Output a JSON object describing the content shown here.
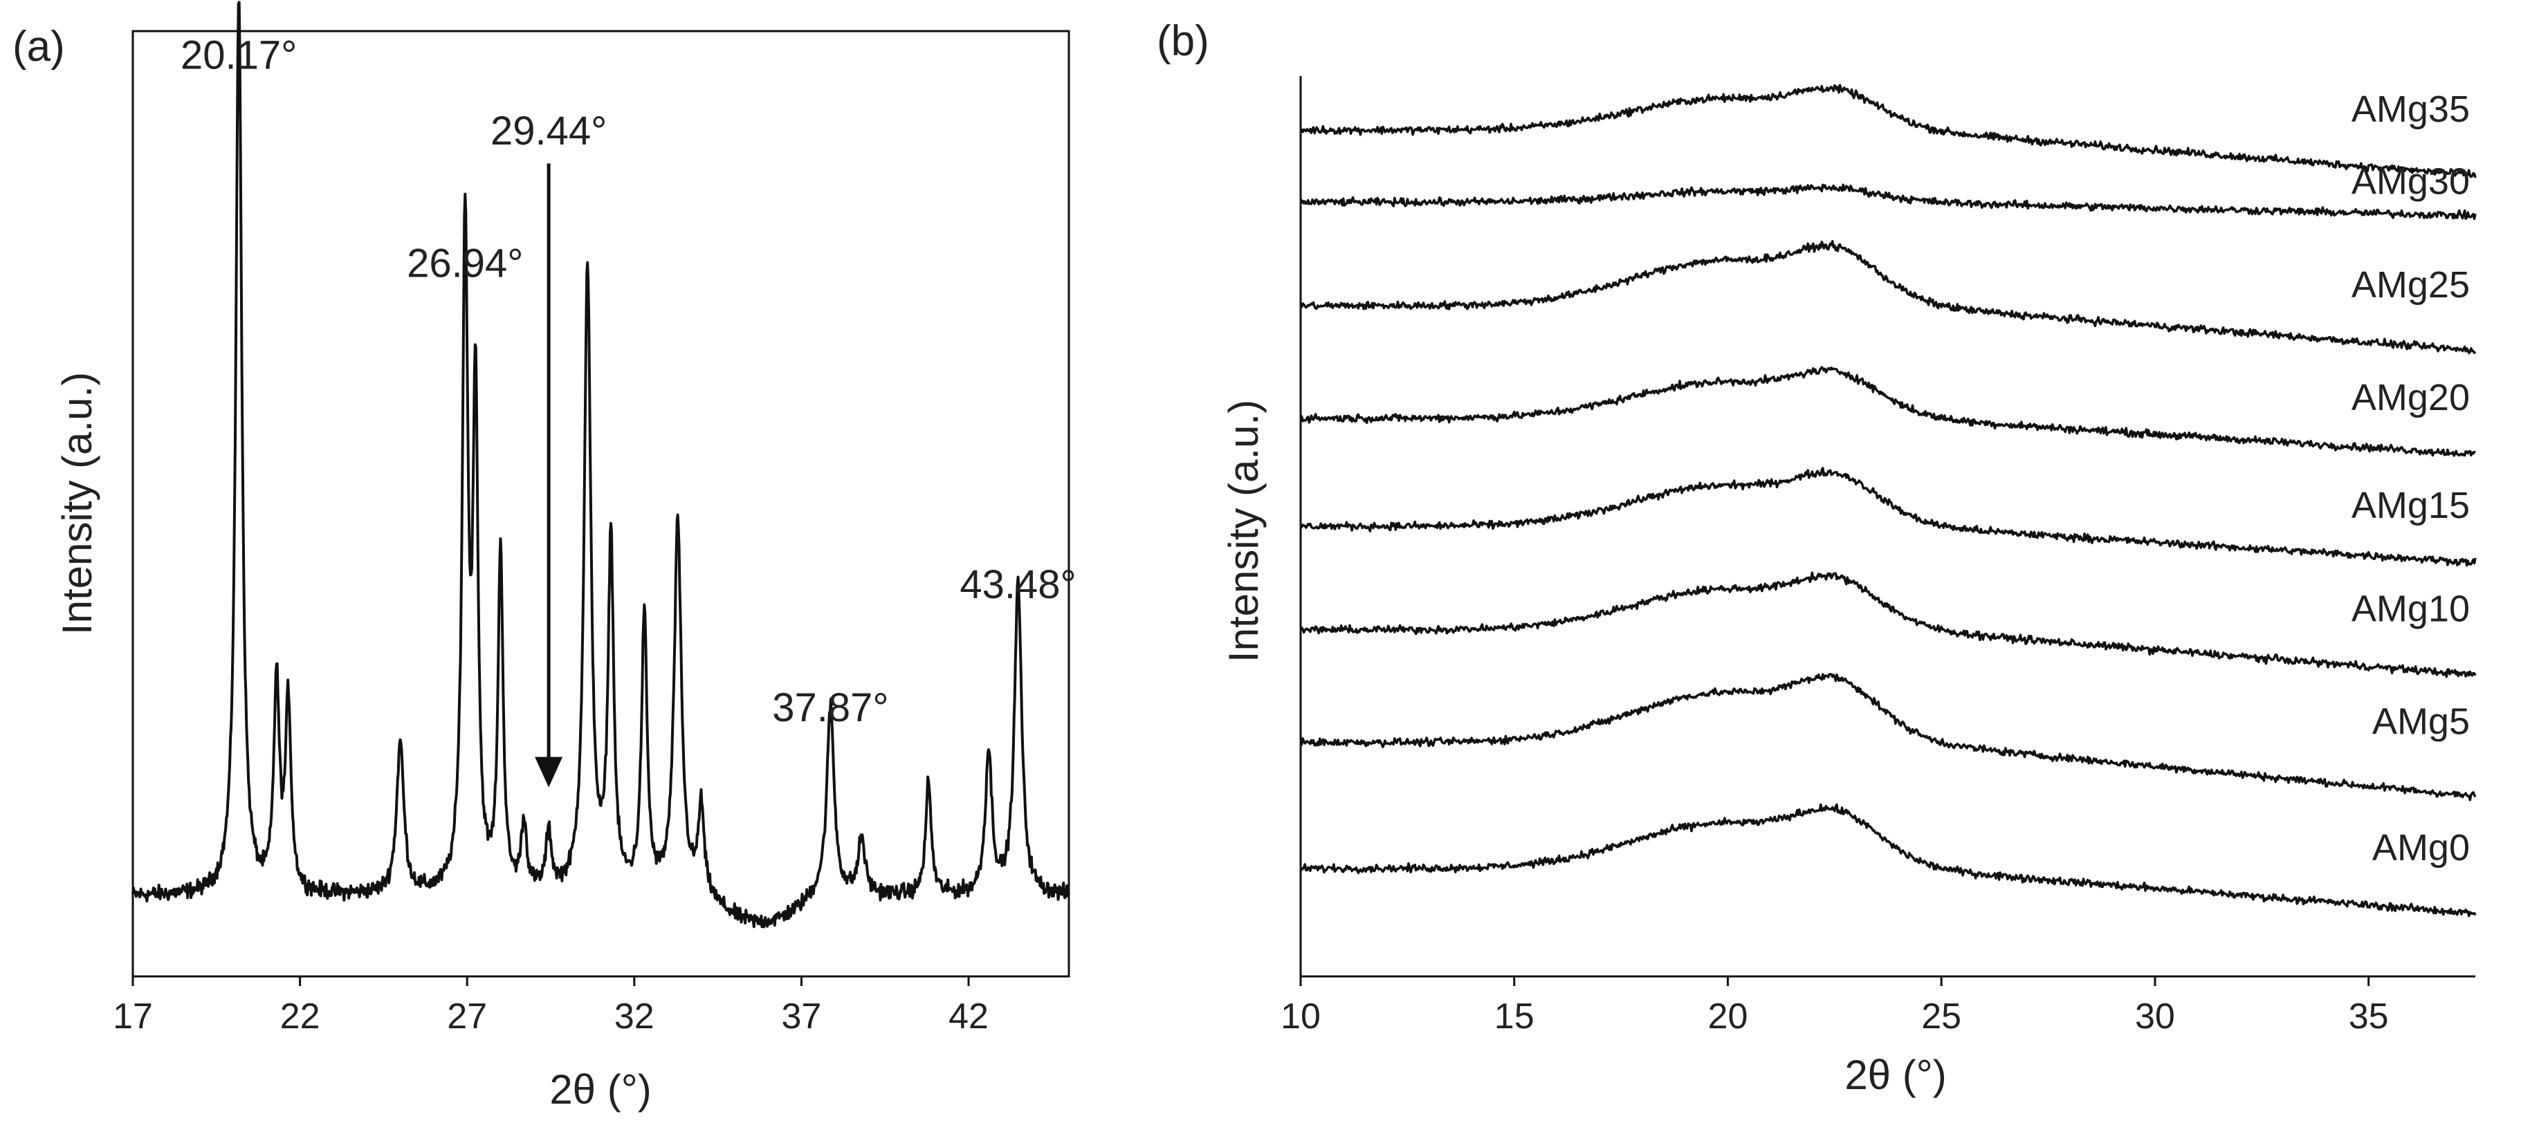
{
  "figure": {
    "panels": [
      "(a)",
      "(b)"
    ]
  },
  "chart_data": [
    {
      "id": "a",
      "type": "line",
      "panel_label": "(a)",
      "title": "",
      "xlabel": "2θ (°)",
      "ylabel": "Intensity (a.u.)",
      "xlim": [
        17,
        45
      ],
      "ylim": [
        0,
        1
      ],
      "xticks": [
        17,
        22,
        27,
        32,
        37,
        42
      ],
      "xtick_labels": [
        "17",
        "22",
        "27",
        "32",
        "37",
        "42"
      ],
      "grid": false,
      "baseline": 0.085,
      "noise": 0.012,
      "peaks": [
        {
          "x": 20.17,
          "h": 0.95,
          "w": 0.11
        },
        {
          "x": 21.3,
          "h": 0.22,
          "w": 0.1
        },
        {
          "x": 21.65,
          "h": 0.2,
          "w": 0.1
        },
        {
          "x": 25.0,
          "h": 0.16,
          "w": 0.13
        },
        {
          "x": 26.94,
          "h": 0.7,
          "w": 0.1
        },
        {
          "x": 27.25,
          "h": 0.52,
          "w": 0.09
        },
        {
          "x": 28.0,
          "h": 0.36,
          "w": 0.09
        },
        {
          "x": 28.7,
          "h": 0.07,
          "w": 0.1
        },
        {
          "x": 29.44,
          "h": 0.06,
          "w": 0.1
        },
        {
          "x": 30.6,
          "h": 0.66,
          "w": 0.12
        },
        {
          "x": 31.3,
          "h": 0.37,
          "w": 0.1
        },
        {
          "x": 32.3,
          "h": 0.29,
          "w": 0.1
        },
        {
          "x": 33.3,
          "h": 0.39,
          "w": 0.13
        },
        {
          "x": 34.0,
          "h": 0.09,
          "w": 0.1
        },
        {
          "x": 37.87,
          "h": 0.2,
          "w": 0.13
        },
        {
          "x": 38.8,
          "h": 0.06,
          "w": 0.12
        },
        {
          "x": 40.8,
          "h": 0.12,
          "w": 0.1
        },
        {
          "x": 42.6,
          "h": 0.15,
          "w": 0.12
        },
        {
          "x": 43.48,
          "h": 0.33,
          "w": 0.13
        }
      ],
      "annotations": [
        {
          "text": "20.17°",
          "x": 20.17,
          "y": 0.96
        },
        {
          "text": "26.94°",
          "x": 26.94,
          "y": 0.74
        },
        {
          "text": "29.44°",
          "x": 29.44,
          "y": 0.88
        },
        {
          "text": "37.87°",
          "x": 37.87,
          "y": 0.27
        },
        {
          "text": "43.48°",
          "x": 43.48,
          "y": 0.4
        }
      ],
      "arrow": {
        "x": 29.44,
        "y_from": 0.86,
        "y_to": 0.2
      }
    },
    {
      "id": "b",
      "type": "line",
      "panel_label": "(b)",
      "title": "",
      "xlabel": "2θ (°)",
      "ylabel": "Intensity (a.u.)",
      "xlim": [
        10,
        37.5
      ],
      "ylim": [
        0,
        1
      ],
      "xticks": [
        10,
        15,
        20,
        25,
        30,
        35
      ],
      "xtick_labels": [
        "10",
        "15",
        "20",
        "25",
        "30",
        "35"
      ],
      "grid": false,
      "legend": "labels at right end of each curve",
      "series": [
        {
          "name": "AMg35",
          "offset": 0.94,
          "amp": 0.035,
          "tail": 0.05
        },
        {
          "name": "AMg30",
          "offset": 0.86,
          "amp": 0.012,
          "tail": 0.015
        },
        {
          "name": "AMg25",
          "offset": 0.745,
          "amp": 0.05,
          "tail": 0.05
        },
        {
          "name": "AMg20",
          "offset": 0.62,
          "amp": 0.04,
          "tail": 0.04
        },
        {
          "name": "AMg15",
          "offset": 0.5,
          "amp": 0.045,
          "tail": 0.04
        },
        {
          "name": "AMg10",
          "offset": 0.385,
          "amp": 0.045,
          "tail": 0.05
        },
        {
          "name": "AMg5",
          "offset": 0.26,
          "amp": 0.055,
          "tail": 0.06
        },
        {
          "name": "AMg0",
          "offset": 0.12,
          "amp": 0.05,
          "tail": 0.05
        }
      ]
    }
  ]
}
